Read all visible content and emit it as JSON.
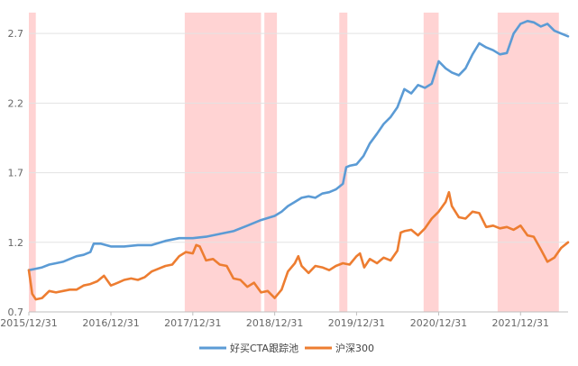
{
  "chart_data": {
    "type": "line",
    "title": "",
    "xlabel": "",
    "ylabel": "",
    "grid": "horizontal",
    "legend_position": "bottom-center",
    "x_start": "2015-12-31",
    "x_end": "2022-07-31",
    "ylim": [
      0.7,
      2.85
    ],
    "y_ticks": [
      "0.7",
      "1.2",
      "1.7",
      "2.2",
      "2.7"
    ],
    "x_ticks": [
      {
        "date": "2015-12-31",
        "label": "2015/12/31"
      },
      {
        "date": "2016-12-31",
        "label": "2016/12/31"
      },
      {
        "date": "2017-12-31",
        "label": "2017/12/31"
      },
      {
        "date": "2018-12-31",
        "label": "2018/12/31"
      },
      {
        "date": "2019-12-31",
        "label": "2019/12/31"
      },
      {
        "date": "2020-12-31",
        "label": "2020/12/31"
      },
      {
        "date": "2021-12-31",
        "label": "2021/12/31"
      }
    ],
    "shaded_periods": [
      {
        "start": "2015-12-31",
        "end": "2016-01-31"
      },
      {
        "start": "2017-11-25",
        "end": "2018-10-31"
      },
      {
        "start": "2018-11-15",
        "end": "2019-01-10"
      },
      {
        "start": "2019-10-15",
        "end": "2019-11-20"
      },
      {
        "start": "2020-10-25",
        "end": "2020-12-31"
      },
      {
        "start": "2021-09-20",
        "end": "2022-06-20"
      }
    ],
    "series": [
      {
        "name": "好买CTA跟踪池",
        "color": "#5b9bd5",
        "points": [
          [
            "2015-12-31",
            1.0
          ],
          [
            "2016-01-31",
            1.01
          ],
          [
            "2016-02-28",
            1.02
          ],
          [
            "2016-03-31",
            1.04
          ],
          [
            "2016-04-30",
            1.05
          ],
          [
            "2016-05-31",
            1.06
          ],
          [
            "2016-06-30",
            1.08
          ],
          [
            "2016-07-31",
            1.1
          ],
          [
            "2016-08-31",
            1.11
          ],
          [
            "2016-09-30",
            1.13
          ],
          [
            "2016-10-15",
            1.19
          ],
          [
            "2016-11-15",
            1.19
          ],
          [
            "2016-12-31",
            1.17
          ],
          [
            "2017-02-28",
            1.17
          ],
          [
            "2017-04-30",
            1.18
          ],
          [
            "2017-06-30",
            1.18
          ],
          [
            "2017-08-31",
            1.21
          ],
          [
            "2017-10-31",
            1.23
          ],
          [
            "2017-12-31",
            1.23
          ],
          [
            "2018-02-28",
            1.24
          ],
          [
            "2018-04-30",
            1.26
          ],
          [
            "2018-06-30",
            1.28
          ],
          [
            "2018-08-31",
            1.32
          ],
          [
            "2018-10-31",
            1.36
          ],
          [
            "2018-12-31",
            1.39
          ],
          [
            "2019-01-31",
            1.42
          ],
          [
            "2019-02-28",
            1.46
          ],
          [
            "2019-03-31",
            1.49
          ],
          [
            "2019-04-30",
            1.52
          ],
          [
            "2019-05-31",
            1.53
          ],
          [
            "2019-06-30",
            1.52
          ],
          [
            "2019-07-31",
            1.55
          ],
          [
            "2019-08-31",
            1.56
          ],
          [
            "2019-09-30",
            1.58
          ],
          [
            "2019-10-31",
            1.62
          ],
          [
            "2019-11-15",
            1.74
          ],
          [
            "2019-11-30",
            1.75
          ],
          [
            "2019-12-31",
            1.76
          ],
          [
            "2020-01-31",
            1.82
          ],
          [
            "2020-02-28",
            1.91
          ],
          [
            "2020-03-31",
            1.98
          ],
          [
            "2020-04-30",
            2.05
          ],
          [
            "2020-05-31",
            2.1
          ],
          [
            "2020-06-30",
            2.17
          ],
          [
            "2020-07-31",
            2.3
          ],
          [
            "2020-08-31",
            2.27
          ],
          [
            "2020-09-30",
            2.33
          ],
          [
            "2020-10-31",
            2.31
          ],
          [
            "2020-11-30",
            2.34
          ],
          [
            "2020-12-31",
            2.5
          ],
          [
            "2021-01-31",
            2.45
          ],
          [
            "2021-02-28",
            2.42
          ],
          [
            "2021-03-31",
            2.4
          ],
          [
            "2021-04-30",
            2.45
          ],
          [
            "2021-05-31",
            2.55
          ],
          [
            "2021-06-30",
            2.63
          ],
          [
            "2021-07-31",
            2.6
          ],
          [
            "2021-08-31",
            2.58
          ],
          [
            "2021-09-30",
            2.55
          ],
          [
            "2021-10-31",
            2.56
          ],
          [
            "2021-11-30",
            2.7
          ],
          [
            "2021-12-31",
            2.77
          ],
          [
            "2022-01-31",
            2.79
          ],
          [
            "2022-02-28",
            2.78
          ],
          [
            "2022-03-31",
            2.75
          ],
          [
            "2022-04-30",
            2.77
          ],
          [
            "2022-05-31",
            2.72
          ],
          [
            "2022-06-30",
            2.7
          ],
          [
            "2022-07-31",
            2.68
          ]
        ]
      },
      {
        "name": "沪深300",
        "color": "#ed7d31",
        "points": [
          [
            "2015-12-31",
            1.0
          ],
          [
            "2016-01-15",
            0.83
          ],
          [
            "2016-01-31",
            0.79
          ],
          [
            "2016-02-28",
            0.8
          ],
          [
            "2016-03-31",
            0.85
          ],
          [
            "2016-04-30",
            0.84
          ],
          [
            "2016-05-31",
            0.85
          ],
          [
            "2016-06-30",
            0.86
          ],
          [
            "2016-07-31",
            0.86
          ],
          [
            "2016-08-31",
            0.89
          ],
          [
            "2016-09-30",
            0.9
          ],
          [
            "2016-10-31",
            0.92
          ],
          [
            "2016-11-30",
            0.96
          ],
          [
            "2016-12-31",
            0.89
          ],
          [
            "2017-01-31",
            0.91
          ],
          [
            "2017-02-28",
            0.93
          ],
          [
            "2017-03-31",
            0.94
          ],
          [
            "2017-04-30",
            0.93
          ],
          [
            "2017-05-31",
            0.95
          ],
          [
            "2017-06-30",
            0.99
          ],
          [
            "2017-07-31",
            1.01
          ],
          [
            "2017-08-31",
            1.03
          ],
          [
            "2017-09-30",
            1.04
          ],
          [
            "2017-10-31",
            1.1
          ],
          [
            "2017-11-30",
            1.13
          ],
          [
            "2017-12-31",
            1.12
          ],
          [
            "2018-01-15",
            1.18
          ],
          [
            "2018-01-31",
            1.17
          ],
          [
            "2018-02-28",
            1.07
          ],
          [
            "2018-03-31",
            1.08
          ],
          [
            "2018-04-30",
            1.04
          ],
          [
            "2018-05-31",
            1.03
          ],
          [
            "2018-06-30",
            0.94
          ],
          [
            "2018-07-31",
            0.93
          ],
          [
            "2018-08-31",
            0.88
          ],
          [
            "2018-09-30",
            0.91
          ],
          [
            "2018-10-31",
            0.84
          ],
          [
            "2018-11-30",
            0.85
          ],
          [
            "2018-12-31",
            0.8
          ],
          [
            "2019-01-31",
            0.86
          ],
          [
            "2019-02-28",
            0.99
          ],
          [
            "2019-03-31",
            1.05
          ],
          [
            "2019-04-15",
            1.1
          ],
          [
            "2019-04-30",
            1.03
          ],
          [
            "2019-05-31",
            0.98
          ],
          [
            "2019-06-30",
            1.03
          ],
          [
            "2019-07-31",
            1.02
          ],
          [
            "2019-08-31",
            1.0
          ],
          [
            "2019-09-30",
            1.03
          ],
          [
            "2019-10-31",
            1.05
          ],
          [
            "2019-11-30",
            1.04
          ],
          [
            "2019-12-31",
            1.1
          ],
          [
            "2020-01-15",
            1.12
          ],
          [
            "2020-02-03",
            1.02
          ],
          [
            "2020-02-28",
            1.08
          ],
          [
            "2020-03-31",
            1.05
          ],
          [
            "2020-04-30",
            1.09
          ],
          [
            "2020-05-31",
            1.07
          ],
          [
            "2020-06-30",
            1.14
          ],
          [
            "2020-07-15",
            1.27
          ],
          [
            "2020-07-31",
            1.28
          ],
          [
            "2020-08-31",
            1.29
          ],
          [
            "2020-09-30",
            1.25
          ],
          [
            "2020-10-31",
            1.3
          ],
          [
            "2020-11-30",
            1.37
          ],
          [
            "2020-12-31",
            1.42
          ],
          [
            "2021-01-31",
            1.49
          ],
          [
            "2021-02-15",
            1.56
          ],
          [
            "2021-02-28",
            1.46
          ],
          [
            "2021-03-31",
            1.38
          ],
          [
            "2021-04-30",
            1.37
          ],
          [
            "2021-05-31",
            1.42
          ],
          [
            "2021-06-30",
            1.41
          ],
          [
            "2021-07-31",
            1.31
          ],
          [
            "2021-08-31",
            1.32
          ],
          [
            "2021-09-30",
            1.3
          ],
          [
            "2021-10-31",
            1.31
          ],
          [
            "2021-11-30",
            1.29
          ],
          [
            "2021-12-31",
            1.32
          ],
          [
            "2022-01-31",
            1.25
          ],
          [
            "2022-02-28",
            1.24
          ],
          [
            "2022-03-31",
            1.15
          ],
          [
            "2022-04-30",
            1.06
          ],
          [
            "2022-05-31",
            1.09
          ],
          [
            "2022-06-30",
            1.16
          ],
          [
            "2022-07-31",
            1.2
          ]
        ]
      }
    ]
  }
}
